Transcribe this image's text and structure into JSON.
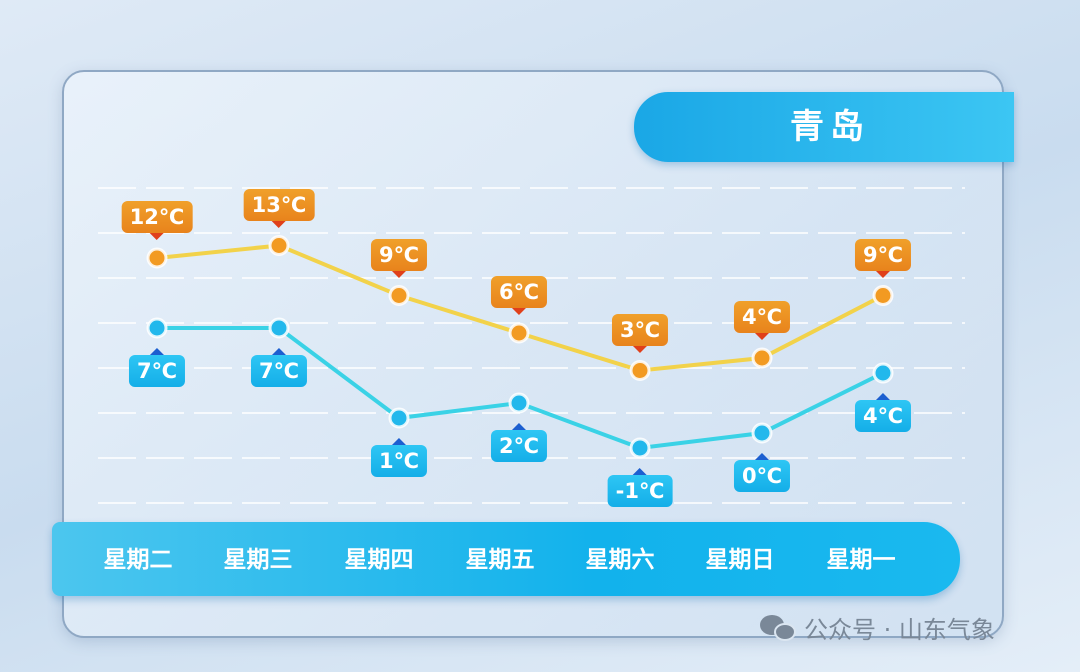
{
  "title": "青岛",
  "watermark": "公众号 · 山东气象",
  "colors": {
    "high": "#f2d24a",
    "low": "#3ad2e6",
    "high_label": "#e8831c",
    "low_label": "#14aee8"
  },
  "chart_data": {
    "type": "line",
    "categories": [
      "星期二",
      "星期三",
      "星期四",
      "星期五",
      "星期六",
      "星期日",
      "星期一"
    ],
    "series": [
      {
        "values": [
          12,
          13,
          9,
          6,
          3,
          4,
          9
        ],
        "labels": [
          "12℃",
          "13℃",
          "9℃",
          "6℃",
          "3℃",
          "4℃",
          "9℃"
        ]
      },
      {
        "values": [
          7,
          7,
          1,
          2,
          -1,
          0,
          4
        ],
        "labels": [
          "7℃",
          "7℃",
          "1℃",
          "2℃",
          "-1℃",
          "0℃",
          "4℃"
        ]
      }
    ],
    "unit": "℃",
    "grid": true
  }
}
